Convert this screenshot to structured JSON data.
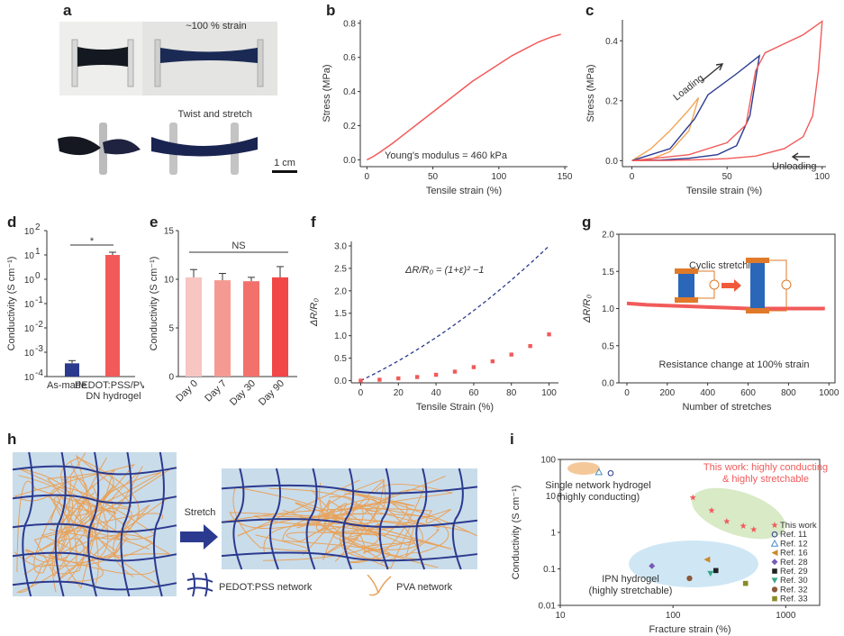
{
  "panels": {
    "a": {
      "letter": "a",
      "strain_label": "~100 % strain",
      "twist_label": "Twist and stretch",
      "scale_label": "1 cm"
    },
    "h": {
      "letter": "h",
      "stretch_label": "Stretch",
      "legend_pedot": "PEDOT:PSS network",
      "legend_pva": "PVA network"
    }
  },
  "colors": {
    "red": "#f25a5a",
    "navy": "#2b3a8f",
    "orange": "#f2a65a",
    "hydrogel_blue": "#c9dcea",
    "pva_orange": "#e8a25a"
  },
  "chart_data": [
    {
      "id": "b",
      "letter": "b",
      "type": "line",
      "xlabel": "Tensile strain (%)",
      "ylabel": "Stress (MPa)",
      "xlim": [
        0,
        150
      ],
      "ylim": [
        0,
        0.8
      ],
      "xticks": [
        0,
        50,
        100,
        150
      ],
      "yticks": [
        0.0,
        0.2,
        0.4,
        0.6,
        0.8
      ],
      "yticklabels": [
        "0.0",
        "0.2",
        "0.4",
        "0.6",
        "0.8"
      ],
      "annotation": "Young's modulus = 460 kPa",
      "series": [
        {
          "x": [
            0,
            5,
            10,
            20,
            30,
            40,
            50,
            60,
            70,
            80,
            90,
            100,
            110,
            120,
            130,
            140,
            147
          ],
          "y": [
            0,
            0.02,
            0.045,
            0.1,
            0.16,
            0.22,
            0.28,
            0.34,
            0.4,
            0.46,
            0.51,
            0.56,
            0.61,
            0.65,
            0.69,
            0.72,
            0.735
          ]
        }
      ]
    },
    {
      "id": "c",
      "letter": "c",
      "type": "line",
      "xlabel": "Tensile strain (%)",
      "ylabel": "Stress (MPa)",
      "xlim": [
        0,
        100
      ],
      "ylim": [
        0,
        0.45
      ],
      "xticks": [
        0,
        50,
        100
      ],
      "yticks": [
        0.0,
        0.2,
        0.4
      ],
      "yticklabels": [
        "0.0",
        "0.2",
        "0.4"
      ],
      "annotations": [
        "Loading",
        "Unloading"
      ],
      "series": [
        {
          "x": [
            0,
            10,
            20,
            30,
            35,
            30,
            20,
            10,
            0
          ],
          "y": [
            0,
            0.04,
            0.1,
            0.17,
            0.21,
            0.1,
            0.03,
            0.005,
            0
          ]
        },
        {
          "x": [
            0,
            20,
            33,
            40,
            55,
            67,
            62,
            55,
            45,
            30,
            15,
            0
          ],
          "y": [
            0,
            0.04,
            0.14,
            0.22,
            0.29,
            0.35,
            0.15,
            0.05,
            0.02,
            0.008,
            0.002,
            0
          ]
        },
        {
          "x": [
            0,
            30,
            50,
            60,
            65,
            70,
            80,
            90,
            100,
            98,
            95,
            90,
            80,
            65,
            50,
            35,
            20,
            0
          ],
          "y": [
            0,
            0.02,
            0.06,
            0.12,
            0.3,
            0.36,
            0.39,
            0.42,
            0.465,
            0.3,
            0.15,
            0.08,
            0.04,
            0.015,
            0.007,
            0.003,
            0.001,
            0
          ]
        }
      ]
    },
    {
      "id": "d",
      "letter": "d",
      "type": "bar",
      "ylabel": "Conductivity (S cm⁻¹)",
      "categories": [
        "As-made",
        "PEDOT:PSS/PVA DN hydrogel"
      ],
      "category_lines": [
        [
          "As-made"
        ],
        [
          "PEDOT:PSS/PVA",
          "DN hydrogel"
        ]
      ],
      "values": [
        0.00035,
        10
      ],
      "yscale": "log",
      "ylim": [
        0.0001,
        100
      ],
      "ytick_bases": [
        "10",
        "10",
        "10",
        "10",
        "10",
        "10",
        "10"
      ],
      "ytick_exps": [
        "-4",
        "-3",
        "-2",
        "-1",
        "0",
        "1",
        "2"
      ],
      "significance": "*"
    },
    {
      "id": "e",
      "letter": "e",
      "type": "bar",
      "ylabel": "Conductivity (S cm⁻¹)",
      "categories": [
        "Day 0",
        "Day 7",
        "Day 30",
        "Day 90"
      ],
      "values": [
        10.2,
        9.9,
        9.8,
        10.2
      ],
      "errors": [
        0.8,
        0.7,
        0.4,
        1.1
      ],
      "ylim": [
        0,
        15
      ],
      "yticks": [
        0,
        5,
        10,
        15
      ],
      "yticklabels": [
        "0",
        "5",
        "10",
        "15"
      ],
      "significance": "NS"
    },
    {
      "id": "f",
      "letter": "f",
      "type": "scatter",
      "xlabel": "Tensile Strain (%)",
      "ylabel": "ΔR/R₀",
      "xlim": [
        0,
        100
      ],
      "ylim": [
        0,
        3.0
      ],
      "xticks": [
        0,
        20,
        40,
        60,
        80,
        100
      ],
      "yticks": [
        0.0,
        0.5,
        1.0,
        1.5,
        2.0,
        2.5,
        3.0
      ],
      "yticklabels": [
        "0.0",
        "0.5",
        "1.0",
        "1.5",
        "2.0",
        "2.5",
        "3.0"
      ],
      "formula": "ΔR/R₀ = (1+ε)² −1",
      "points": {
        "x": [
          0,
          10,
          20,
          30,
          40,
          50,
          60,
          70,
          80,
          90,
          100
        ],
        "y": [
          0.0,
          0.02,
          0.05,
          0.08,
          0.13,
          0.2,
          0.3,
          0.43,
          0.58,
          0.77,
          1.03
        ]
      }
    },
    {
      "id": "g",
      "letter": "g",
      "type": "line",
      "xlabel": "Number of stretches",
      "ylabel": "ΔR/R₀",
      "xlim": [
        0,
        1000
      ],
      "ylim": [
        0,
        2.0
      ],
      "xticks": [
        0,
        200,
        400,
        600,
        800,
        1000
      ],
      "yticks": [
        0.0,
        0.5,
        1.0,
        1.5,
        2.0
      ],
      "yticklabels": [
        "0.0",
        "0.5",
        "1.0",
        "1.5",
        "2.0"
      ],
      "annotations": [
        "Cyclic stretching",
        "Resistance change at 100% strain"
      ],
      "series": [
        {
          "x": [
            0,
            100,
            200,
            300,
            400,
            500,
            600,
            700,
            800,
            900,
            980
          ],
          "y": [
            1.07,
            1.05,
            1.04,
            1.03,
            1.02,
            1.01,
            1.0,
            1.0,
            1.0,
            1.0,
            1.0
          ]
        }
      ]
    },
    {
      "id": "i",
      "letter": "i",
      "type": "scatter",
      "xlabel": "Fracture strain (%)",
      "ylabel": "Conductivity (S cm⁻¹)",
      "xscale": "log",
      "yscale": "log",
      "xlim": [
        10,
        2000
      ],
      "ylim": [
        0.01,
        100
      ],
      "xticks": [
        10,
        100,
        1000
      ],
      "xticklabels": [
        "10",
        "100",
        "1000"
      ],
      "yticks": [
        0.01,
        0.1,
        1,
        10,
        100
      ],
      "yticklabels": [
        "0.01",
        "0.1",
        "1",
        "10",
        "100"
      ],
      "annotations": [
        "This work: highly conducting",
        "& highly stretchable",
        "Single network hydrogel",
        "(highly conducting)",
        "IPN hydrogel",
        "(highly stretchable)"
      ],
      "series": [
        {
          "name": "This work",
          "marker": "star",
          "color": "#f25a5a",
          "x": [
            150,
            220,
            300,
            420,
            520
          ],
          "y": [
            9,
            4,
            2,
            1.5,
            1.2
          ]
        },
        {
          "name": "Ref. 11",
          "marker": "circle-open",
          "color": "#2b3a8f",
          "x": [
            28
          ],
          "y": [
            42
          ]
        },
        {
          "name": "Ref. 12",
          "marker": "triangle-open",
          "color": "#4a90c2",
          "x": [
            22
          ],
          "y": [
            45
          ]
        },
        {
          "name": "Ref. 16",
          "marker": "triangle-left",
          "color": "#c88a2a",
          "x": [
            200
          ],
          "y": [
            0.18
          ]
        },
        {
          "name": "Ref. 28",
          "marker": "diamond",
          "color": "#7a5ab5",
          "x": [
            65
          ],
          "y": [
            0.12
          ]
        },
        {
          "name": "Ref. 29",
          "marker": "square",
          "color": "#222222",
          "x": [
            240
          ],
          "y": [
            0.09
          ]
        },
        {
          "name": "Ref. 30",
          "marker": "triangle-down",
          "color": "#3aa88a",
          "x": [
            215
          ],
          "y": [
            0.075
          ]
        },
        {
          "name": "Ref. 32",
          "marker": "circle",
          "color": "#8a5a3a",
          "x": [
            140
          ],
          "y": [
            0.055
          ]
        },
        {
          "name": "Ref. 33",
          "marker": "square",
          "color": "#8a8a2a",
          "x": [
            440
          ],
          "y": [
            0.04
          ]
        }
      ]
    }
  ]
}
